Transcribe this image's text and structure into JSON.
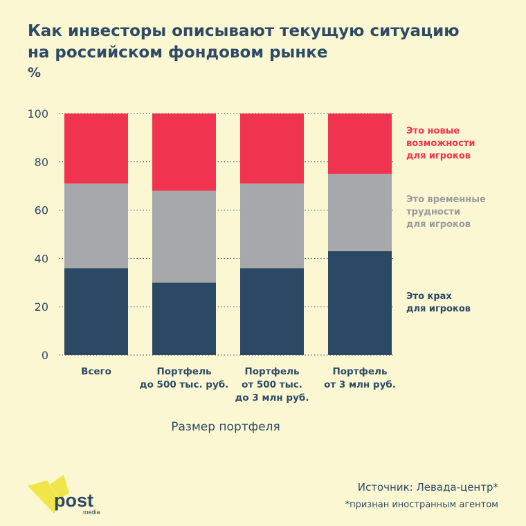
{
  "title_lines": [
    "Как инвесторы описывают текущую ситуацию",
    "на российском фондовом рынке"
  ],
  "unit": "%",
  "chart_data": {
    "type": "bar",
    "stacked": true,
    "categories": [
      [
        "Всего"
      ],
      [
        "Портфель",
        "до 500 тыс. руб."
      ],
      [
        "Портфель",
        "от 500 тыс.",
        "до 3 млн руб."
      ],
      [
        "Портфель",
        "от 3 млн руб."
      ]
    ],
    "series": [
      {
        "name": "Это крах для игроков",
        "legend_lines": [
          "Это крах",
          "для игроков"
        ],
        "color": "#2b4865",
        "values": [
          36,
          30,
          36,
          43
        ]
      },
      {
        "name": "Это временные трудности для игроков",
        "legend_lines": [
          "Это временные",
          "трудности",
          "для игроков"
        ],
        "color": "#a7a8ab",
        "values": [
          35,
          38,
          35,
          32
        ]
      },
      {
        "name": "Это новые возможности для игроков",
        "legend_lines": [
          "Это новые",
          "возможности",
          "для игроков"
        ],
        "color": "#f0344f",
        "values": [
          29,
          32,
          29,
          25
        ]
      }
    ],
    "yticks": [
      0,
      20,
      40,
      60,
      80,
      100
    ],
    "ylim": [
      0,
      100
    ],
    "xlabel": "Размер портфеля",
    "ylabel": "",
    "grid": false,
    "legend_position": "right"
  },
  "source": "Источник: Левада-центр*",
  "footnote": "*признан иностранным агентом",
  "logo": {
    "text": "post",
    "subtext": "media",
    "color": "#f0e64a"
  },
  "colors": {
    "text": "#2d4a66",
    "background": "#fbf7d2"
  }
}
